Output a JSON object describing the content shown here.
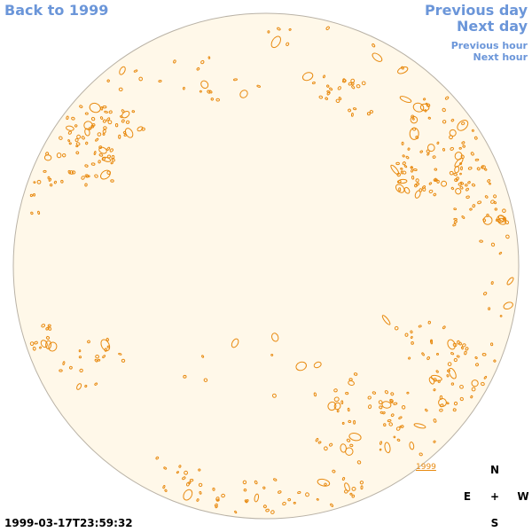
{
  "nav": {
    "back_label": "Back to 1999",
    "previous_day_label": "Previous day",
    "next_day_label": "Next day",
    "previous_hour_label": "Previous hour",
    "next_hour_label": "Next hour"
  },
  "timestamp": "1999-03-17T23:59:32",
  "year_link": "1999",
  "compass": {
    "north": "N",
    "south": "S",
    "east": "E",
    "west": "W",
    "center": "+"
  },
  "colors": {
    "link": "#6b96d9",
    "disk_fill": "#fff8e9",
    "disk_outline": "#b9b2a6",
    "feature": "#e88a10"
  }
}
